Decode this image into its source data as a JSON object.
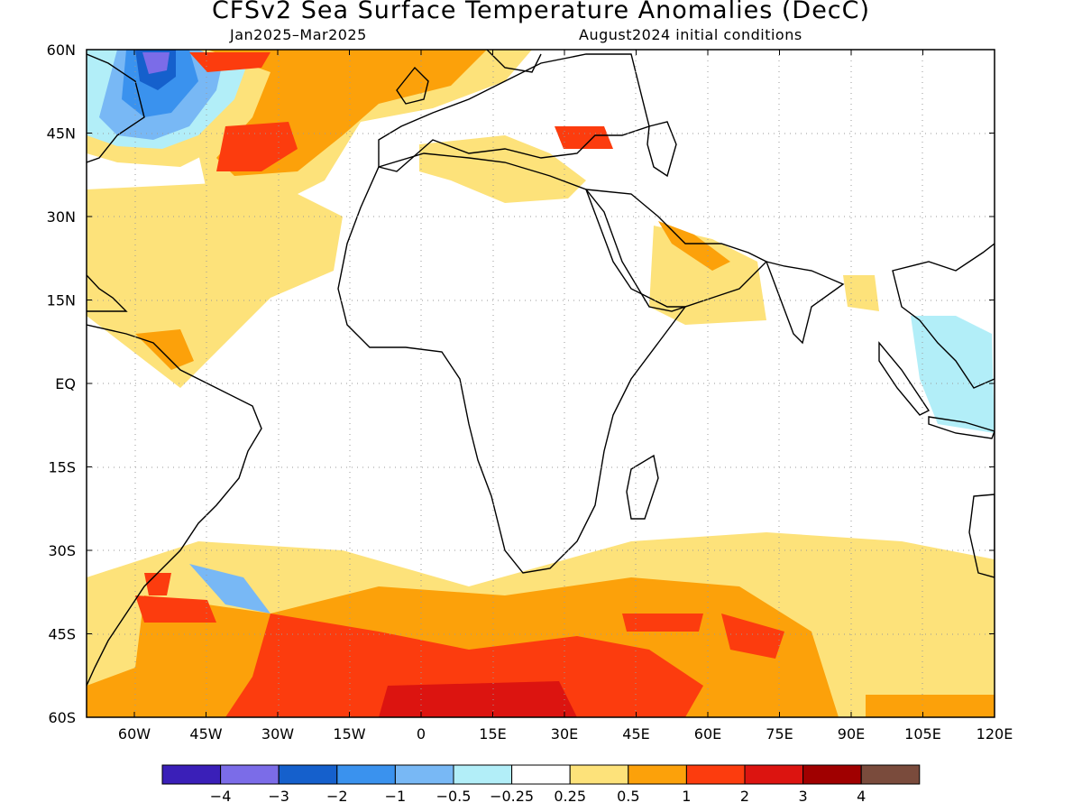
{
  "title": "CFSv2 Sea Surface Temperature Anomalies (DecC)",
  "subtitle_left": "Jan2025–Mar2025",
  "subtitle_right": "August2024 initial conditions",
  "map": {
    "lon_range": [
      -70,
      120
    ],
    "lat_range": [
      -60,
      60
    ],
    "lon_ticks": [
      "60W",
      "45W",
      "30W",
      "15W",
      "0",
      "15E",
      "30E",
      "45E",
      "60E",
      "75E",
      "90E",
      "105E",
      "120E"
    ],
    "lat_ticks": [
      "60N",
      "45N",
      "30N",
      "15N",
      "EQ",
      "15S",
      "30S",
      "45S",
      "60S"
    ],
    "grid": "dotted"
  },
  "colorbar": {
    "colors": [
      "#3a1fb8",
      "#7b6ce8",
      "#1560cc",
      "#3a92ee",
      "#78b8f5",
      "#b2eef8",
      "#ffffff",
      "#fde27a",
      "#fca10a",
      "#fc3c0e",
      "#dc1410",
      "#a00000",
      "#7a4b3c"
    ],
    "labels": [
      "−4",
      "−3",
      "−2",
      "−1",
      "−0.5",
      "−0.25",
      "0.25",
      "0.5",
      "1",
      "2",
      "3",
      "4"
    ]
  }
}
